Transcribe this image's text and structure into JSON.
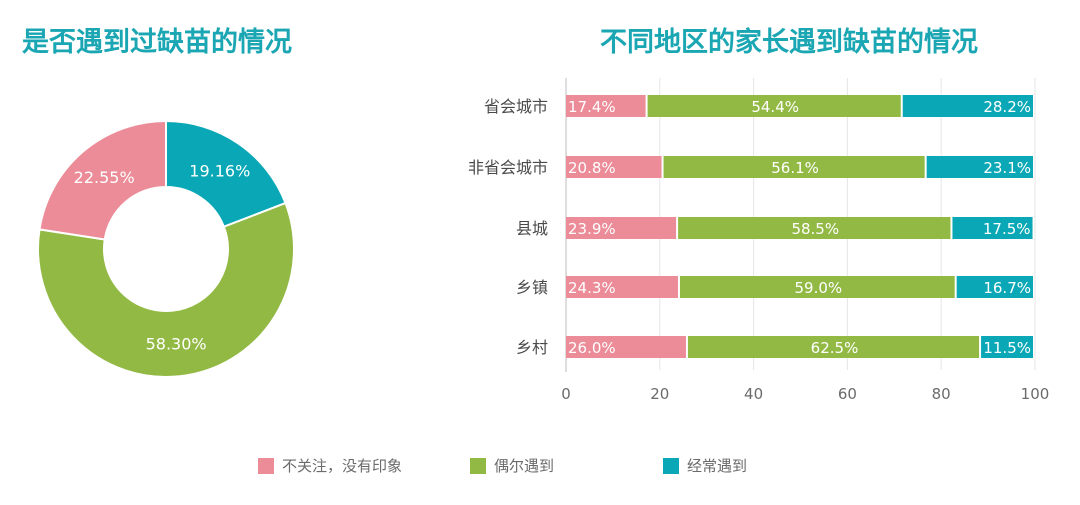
{
  "colors": {
    "pink": "#eb8c98",
    "green": "#93b945",
    "teal": "#0aa8b6",
    "accent": "#1aa6b2"
  },
  "chart_data": [
    {
      "type": "pie",
      "title": "是否遇到过缺苗的情况",
      "labels": [
        "不关注，没有印象",
        "偶尔遇到",
        "经常遇到"
      ],
      "values": [
        22.55,
        58.3,
        19.16
      ],
      "value_labels": [
        "22.55%",
        "58.30%",
        "19.16%"
      ],
      "style": "donut"
    },
    {
      "type": "bar",
      "orientation": "horizontal",
      "stacked": true,
      "title": "不同地区的家长遇到缺苗的情况",
      "categories": [
        "省会城市",
        "非省会城市",
        "县城",
        "乡镇",
        "乡村"
      ],
      "series": [
        {
          "name": "不关注，没有印象",
          "values": [
            17.4,
            20.8,
            23.9,
            24.3,
            26.0
          ],
          "labels": [
            "17.4%",
            "20.8%",
            "23.9%",
            "24.3%",
            "26.0%"
          ]
        },
        {
          "name": "偶尔遇到",
          "values": [
            54.4,
            56.1,
            58.5,
            59.0,
            62.5
          ],
          "labels": [
            "54.4%",
            "56.1%",
            "58.5%",
            "59.0%",
            "62.5%"
          ]
        },
        {
          "name": "经常遇到",
          "values": [
            28.2,
            23.1,
            17.5,
            16.7,
            11.5
          ],
          "labels": [
            "28.2%",
            "23.1%",
            "17.5%",
            "16.7%",
            "11.5%"
          ]
        }
      ],
      "xlim": [
        0,
        100
      ],
      "xticks": [
        "0",
        "20",
        "40",
        "60",
        "80",
        "100"
      ],
      "grid": true
    }
  ],
  "legend": [
    {
      "label": "不关注，没有印象",
      "color": "#eb8c98"
    },
    {
      "label": "偶尔遇到",
      "color": "#93b945"
    },
    {
      "label": "经常遇到",
      "color": "#0aa8b6"
    }
  ]
}
